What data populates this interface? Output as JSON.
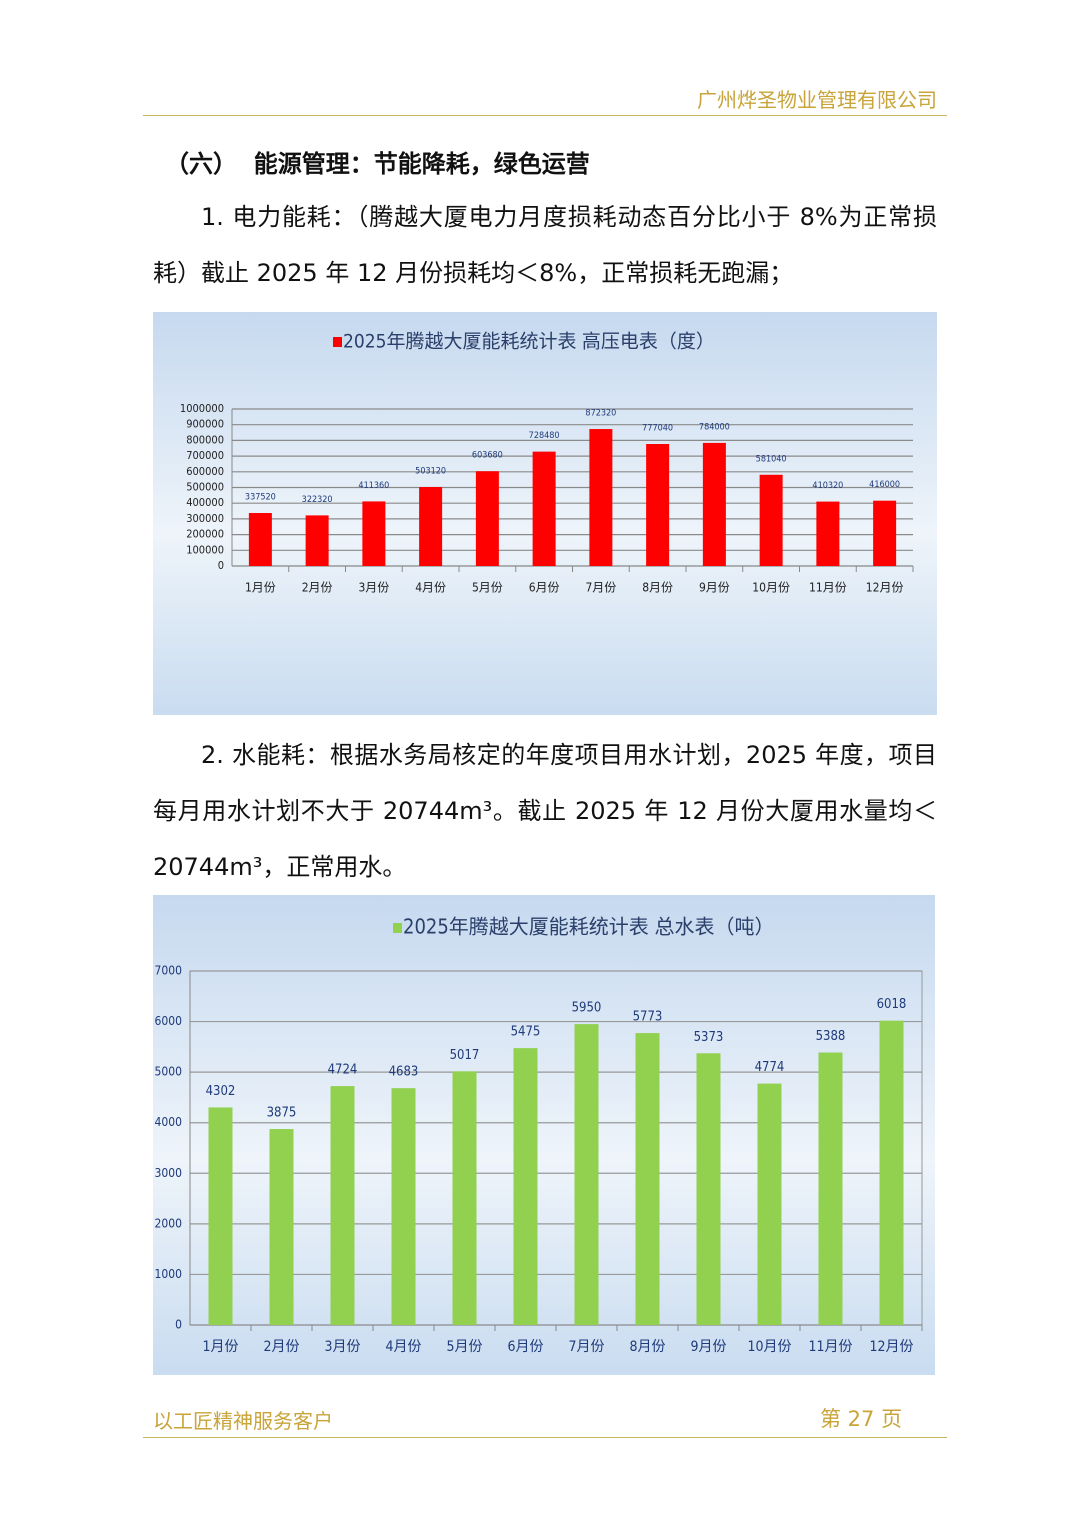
{
  "header": {
    "company": "广州烨圣物业管理有限公司"
  },
  "heading": "（六）  能源管理：节能降耗，绿色运营",
  "paragraphs": [
    "1. 电力能耗：（腾越大厦电力月度损耗动态百分比小于 8%为正常损耗）截止 2025 年 12 月份损耗均＜8%，正常损耗无跑漏；",
    "2. 水能耗：根据水务局核定的年度项目用水计划，2025 年度，项目每月用水计划不大于 20744m³。截止 2025 年 12 月份大厦用水量均＜20744m³，正常用水。"
  ],
  "chart_data": [
    {
      "type": "bar",
      "categories": [
        "1月份",
        "2月份",
        "3月份",
        "4月份",
        "5月份",
        "6月份",
        "7月份",
        "8月份",
        "9月份",
        "10月份",
        "11月份",
        "12月份"
      ],
      "series": [
        {
          "name": "2025年腾越大厦能耗统计表 高压电表（度）",
          "color": "#ff0000",
          "values": [
            337520,
            322320,
            411360,
            503120,
            603680,
            728480,
            872320,
            777040,
            784000,
            581040,
            410320,
            416000
          ]
        }
      ],
      "ylim": [
        0,
        1000000
      ],
      "yticks": [
        0,
        100000,
        200000,
        300000,
        400000,
        500000,
        600000,
        700000,
        800000,
        900000,
        1000000
      ],
      "grid": true
    },
    {
      "type": "bar",
      "categories": [
        "1月份",
        "2月份",
        "3月份",
        "4月份",
        "5月份",
        "6月份",
        "7月份",
        "8月份",
        "9月份",
        "10月份",
        "11月份",
        "12月份"
      ],
      "series": [
        {
          "name": "2025年腾越大厦能耗统计表 总水表（吨）",
          "color": "#92d050",
          "values": [
            4302,
            3875,
            4724,
            4683,
            5017,
            5475,
            5950,
            5773,
            5373,
            4774,
            5388,
            6018
          ]
        }
      ],
      "ylim": [
        0,
        7000
      ],
      "yticks": [
        0,
        1000,
        2000,
        3000,
        4000,
        5000,
        6000,
        7000
      ],
      "grid": true
    }
  ],
  "footer": {
    "motto": "以工匠精神服务客户",
    "page": "第 27 页"
  }
}
